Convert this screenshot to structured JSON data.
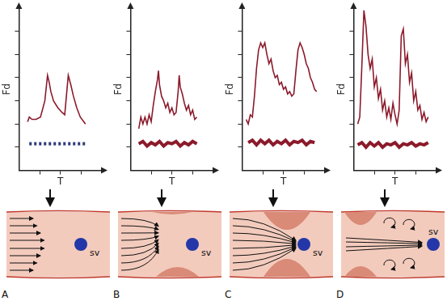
{
  "chart_data": [
    {
      "type": "line",
      "x_label": "T",
      "y_label": "Fd",
      "xlim": [
        0,
        4
      ],
      "ylim": [
        0,
        7
      ],
      "xticks": [
        1,
        2,
        3
      ],
      "yticks": [
        1,
        2,
        3,
        4,
        5,
        6
      ],
      "tick_labels": false,
      "grid": false,
      "series": [
        {
          "color": "#8b1a2b",
          "line_style": "solid",
          "x": [
            0.42,
            0.5,
            0.63,
            0.83,
            1.04,
            1.25,
            1.38,
            1.46,
            1.54,
            1.67,
            1.88,
            2.08,
            2.21,
            2.29,
            2.38,
            2.5,
            2.63,
            2.79,
            2.96,
            3.13,
            3.21
          ],
          "values": [
            2.1,
            2.3,
            2.2,
            2.2,
            2.3,
            3.0,
            4.1,
            3.8,
            3.4,
            3.0,
            2.7,
            2.5,
            2.4,
            3.2,
            4.1,
            3.7,
            3.2,
            2.7,
            2.3,
            2.1,
            2.0
          ]
        },
        {
          "color": "#2e3a7a",
          "line_style": "dashed",
          "x": [
            0.5,
            3.2
          ],
          "values": [
            1.15,
            1.15
          ]
        }
      ]
    },
    {
      "type": "line",
      "x_label": "T",
      "y_label": "Fd",
      "xlim": [
        0,
        4
      ],
      "ylim": [
        0,
        7
      ],
      "xticks": [
        1,
        2,
        3
      ],
      "yticks": [
        1,
        2,
        3,
        4,
        5,
        6
      ],
      "tick_labels": false,
      "grid": false,
      "series": [
        {
          "color": "#8b1a2b",
          "line_style": "solid",
          "x": [
            0.4,
            0.5,
            0.6,
            0.7,
            0.8,
            0.9,
            1.0,
            1.1,
            1.2,
            1.3,
            1.35,
            1.4,
            1.5,
            1.6,
            1.7,
            1.8,
            1.9,
            2.0,
            2.1,
            2.2,
            2.3,
            2.35,
            2.4,
            2.5,
            2.6,
            2.7,
            2.8,
            2.9,
            3.0,
            3.1,
            3.2
          ],
          "values": [
            1.8,
            2.3,
            2.0,
            2.3,
            2.0,
            2.4,
            2.1,
            2.8,
            3.4,
            3.9,
            4.3,
            3.7,
            3.2,
            3.0,
            2.7,
            2.9,
            2.5,
            2.7,
            2.4,
            2.5,
            3.4,
            4.1,
            3.6,
            3.3,
            2.9,
            2.6,
            2.8,
            2.4,
            2.6,
            2.2,
            2.3
          ]
        },
        {
          "color": "#8b1a2b",
          "line_style": "solid",
          "x": [
            0.4,
            0.6,
            0.8,
            1.0,
            1.2,
            1.4,
            1.6,
            1.8,
            2.0,
            2.2,
            2.4,
            2.6,
            2.8,
            3.0,
            3.2
          ],
          "values": [
            1.15,
            1.25,
            1.05,
            1.2,
            1.1,
            1.25,
            1.05,
            1.2,
            1.15,
            1.25,
            1.05,
            1.2,
            1.1,
            1.25,
            1.15
          ]
        }
      ]
    },
    {
      "type": "line",
      "x_label": "T",
      "y_label": "Fd",
      "xlim": [
        0,
        4
      ],
      "ylim": [
        0,
        7
      ],
      "xticks": [
        1,
        2,
        3
      ],
      "yticks": [
        1,
        2,
        3,
        4,
        5,
        6
      ],
      "tick_labels": false,
      "grid": false,
      "series": [
        {
          "color": "#8b1a2b",
          "line_style": "solid",
          "x": [
            0.2,
            0.3,
            0.4,
            0.5,
            0.6,
            0.7,
            0.8,
            0.9,
            1.0,
            1.1,
            1.2,
            1.3,
            1.4,
            1.5,
            1.6,
            1.7,
            1.8,
            1.9,
            2.0,
            2.1,
            2.2,
            2.3,
            2.4,
            2.5,
            2.6,
            2.7,
            2.8,
            2.9,
            3.0,
            3.1,
            3.2,
            3.3,
            3.4,
            3.5,
            3.6
          ],
          "values": [
            2.2,
            2.0,
            2.4,
            2.3,
            3.2,
            4.4,
            5.2,
            5.5,
            5.3,
            5.5,
            5.0,
            4.6,
            4.8,
            4.3,
            4.0,
            4.1,
            3.7,
            3.8,
            3.5,
            3.6,
            3.3,
            3.4,
            3.2,
            3.3,
            4.3,
            5.2,
            5.5,
            5.3,
            5.0,
            4.6,
            4.4,
            4.0,
            3.8,
            3.5,
            3.4
          ]
        },
        {
          "color": "#8b1a2b",
          "line_style": "solid",
          "x": [
            0.3,
            0.5,
            0.7,
            0.9,
            1.1,
            1.3,
            1.5,
            1.7,
            1.9,
            2.1,
            2.3,
            2.5,
            2.7,
            2.9,
            3.1,
            3.3,
            3.5
          ],
          "values": [
            1.2,
            1.3,
            1.1,
            1.3,
            1.15,
            1.3,
            1.1,
            1.25,
            1.15,
            1.3,
            1.1,
            1.25,
            1.2,
            1.3,
            1.1,
            1.25,
            1.2
          ]
        }
      ]
    },
    {
      "type": "line",
      "x_label": "T",
      "y_label": "Fd",
      "xlim": [
        0,
        4
      ],
      "ylim": [
        0,
        7
      ],
      "xticks": [
        1,
        2,
        3
      ],
      "yticks": [
        1,
        2,
        3,
        4,
        5,
        6
      ],
      "tick_labels": false,
      "grid": false,
      "series": [
        {
          "color": "#8b1a2b",
          "line_style": "solid",
          "x": [
            0.2,
            0.3,
            0.4,
            0.5,
            0.6,
            0.7,
            0.8,
            0.9,
            1.0,
            1.1,
            1.2,
            1.3,
            1.4,
            1.5,
            1.6,
            1.7,
            1.8,
            1.9,
            2.0,
            2.1,
            2.2,
            2.3,
            2.4,
            2.5,
            2.6,
            2.7,
            2.8,
            2.9,
            3.0,
            3.1,
            3.2,
            3.3,
            3.4,
            3.5,
            3.6
          ],
          "values": [
            2.0,
            2.3,
            4.5,
            6.9,
            6.2,
            5.0,
            4.4,
            4.8,
            3.6,
            4.0,
            3.1,
            3.5,
            2.6,
            3.0,
            2.3,
            2.7,
            2.2,
            2.9,
            2.4,
            2.0,
            2.6,
            5.8,
            6.1,
            4.6,
            5.0,
            3.8,
            4.2,
            3.0,
            3.4,
            2.6,
            2.8,
            2.2,
            2.5,
            2.1,
            2.3
          ]
        },
        {
          "color": "#8b1a2b",
          "line_style": "solid",
          "x": [
            0.2,
            0.4,
            0.6,
            0.8,
            1.0,
            1.2,
            1.4,
            1.6,
            1.8,
            2.0,
            2.2,
            2.4,
            2.6,
            2.8,
            3.0,
            3.2,
            3.4,
            3.6
          ],
          "values": [
            1.1,
            1.2,
            1.0,
            1.2,
            1.05,
            1.2,
            1.0,
            1.15,
            1.1,
            1.2,
            1.0,
            1.15,
            1.1,
            1.2,
            1.05,
            1.15,
            1.1,
            1.2
          ]
        }
      ]
    }
  ],
  "diagram": {
    "panels": [
      {
        "label": "A",
        "sample_volume": "sv"
      },
      {
        "label": "B",
        "sample_volume": "sv"
      },
      {
        "label": "C",
        "sample_volume": "sv"
      },
      {
        "label": "D",
        "sample_volume": "sv"
      }
    ]
  }
}
